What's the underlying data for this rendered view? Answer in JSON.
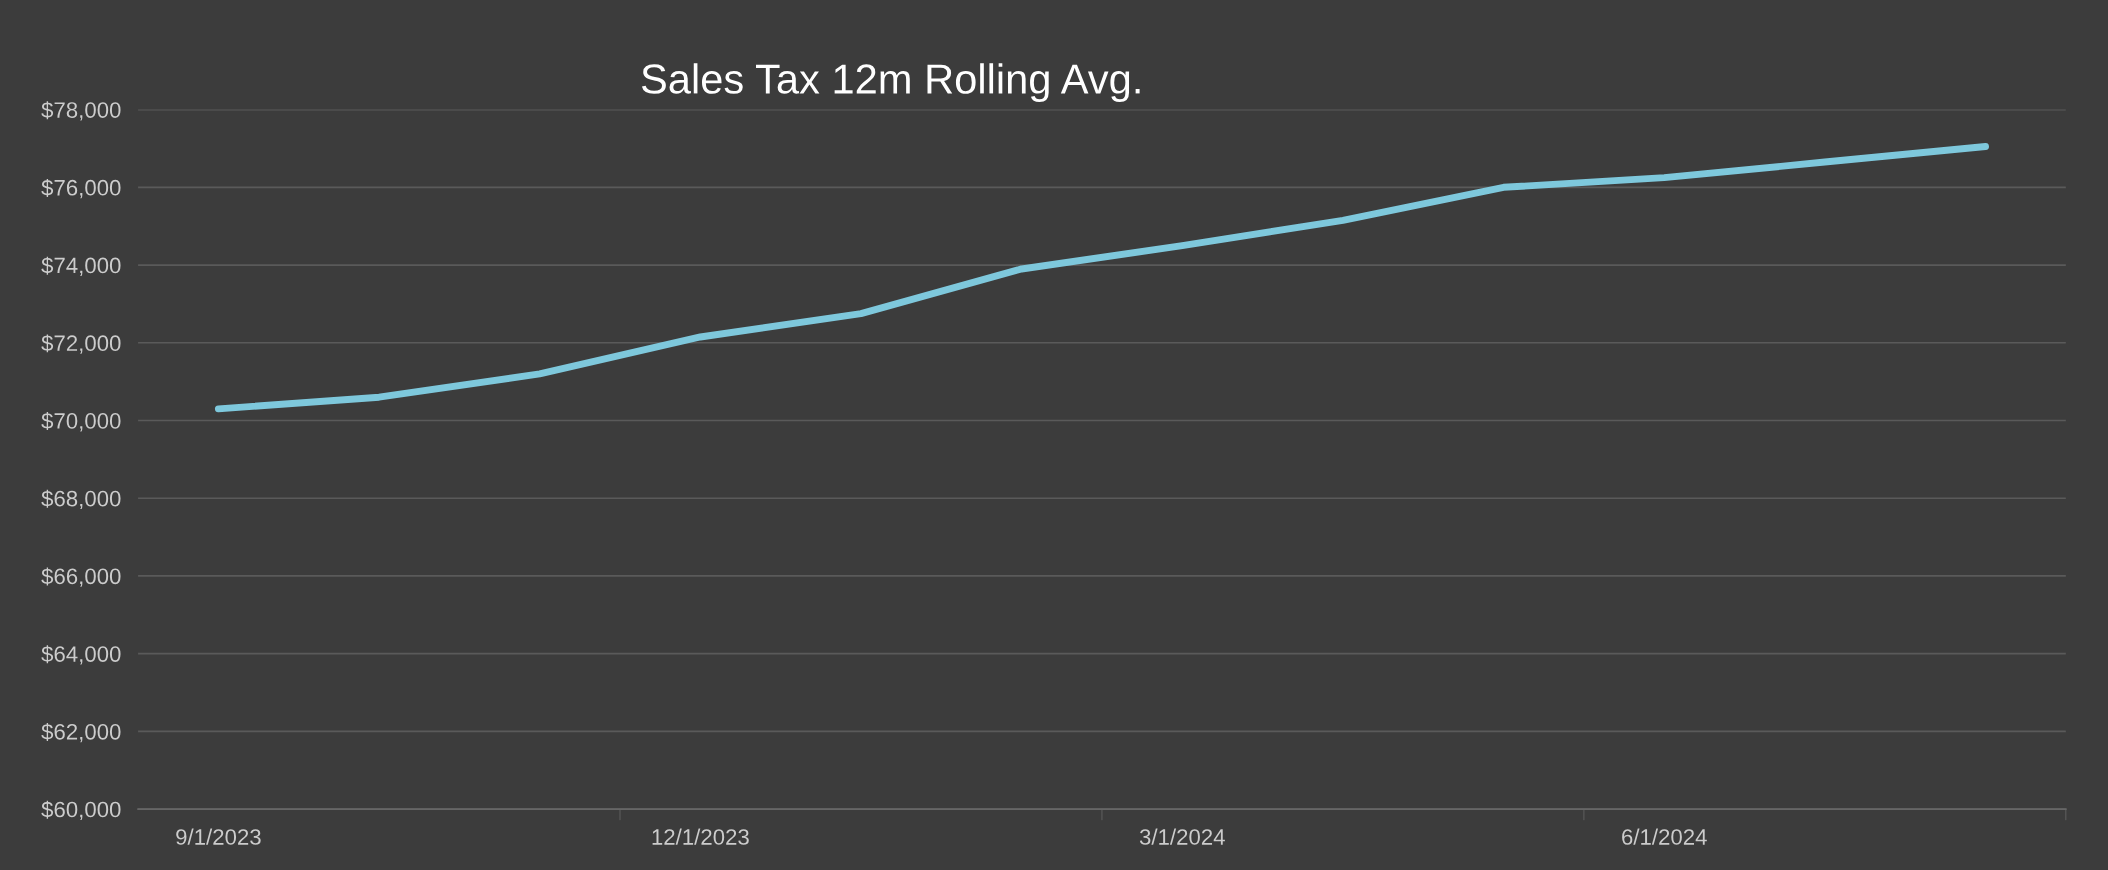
{
  "chart_data": {
    "type": "line",
    "title": "Sales Tax 12m Rolling Avg.",
    "categories": [
      "9/1/2023",
      null,
      null,
      "12/1/2023",
      null,
      null,
      "3/1/2024",
      null,
      null,
      "6/1/2024",
      null,
      null
    ],
    "series": [
      {
        "color": "#7ec8dc",
        "values": [
          70300,
          70600,
          71200,
          72150,
          72750,
          73900,
          74500,
          75150,
          76000,
          76250,
          76650,
          77050
        ]
      }
    ],
    "ylim": [
      60000,
      78000
    ],
    "yticks": [
      {
        "value": 60000,
        "label": "$60,000"
      },
      {
        "value": 62000,
        "label": "$62,000"
      },
      {
        "value": 64000,
        "label": "$64,000"
      },
      {
        "value": 66000,
        "label": "$66,000"
      },
      {
        "value": 68000,
        "label": "$68,000"
      },
      {
        "value": 70000,
        "label": "$70,000"
      },
      {
        "value": 72000,
        "label": "$72,000"
      },
      {
        "value": 74000,
        "label": "$74,000"
      },
      {
        "value": 76000,
        "label": "$76,000"
      },
      {
        "value": 78000,
        "label": "$78,000"
      }
    ],
    "grid": "y",
    "marker": "none",
    "line_style": "solid"
  }
}
